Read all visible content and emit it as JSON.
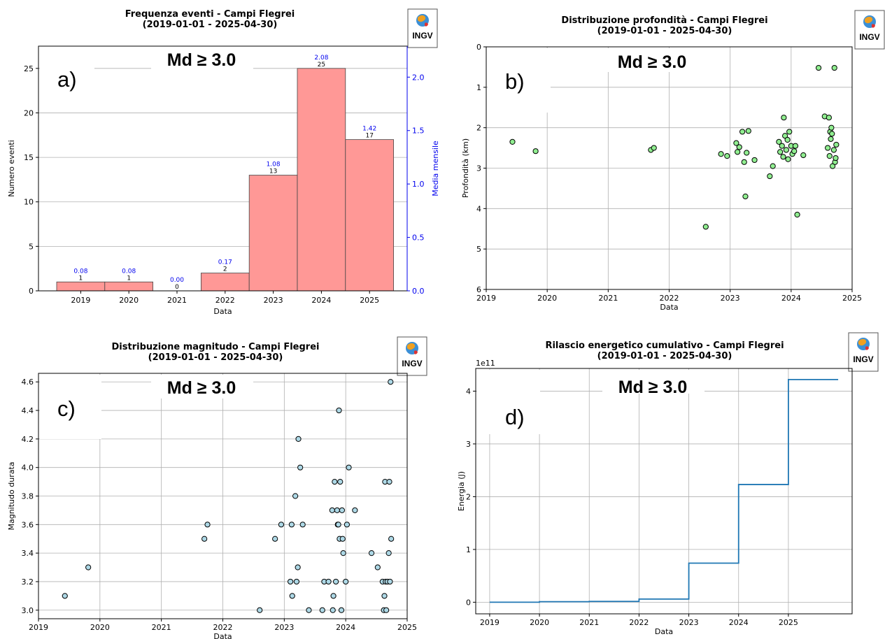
{
  "logo": {
    "text": "INGV"
  },
  "chart_data": [
    {
      "type": "bar",
      "panel_label": "a)",
      "md_label": "Md ≥ 3.0",
      "title": "Frequenza eventi - Campi Flegrei",
      "subtitle": "(2019-01-01 - 2025-04-30)",
      "xlabel": "Data",
      "ylabel": "Numero eventi",
      "y2label": "Media mensile",
      "categories": [
        "2019",
        "2020",
        "2021",
        "2022",
        "2023",
        "2024",
        "2025"
      ],
      "values": [
        1,
        1,
        0,
        2,
        13,
        25,
        17
      ],
      "secondary_values": [
        0.08,
        0.08,
        0.0,
        0.17,
        1.08,
        2.08,
        1.42
      ],
      "secondary_labels": [
        "0.08",
        "0.08",
        "0.00",
        "0.17",
        "1.08",
        "2.08",
        "1.42"
      ],
      "ylim": [
        0,
        27.5
      ],
      "y2lim": [
        0,
        2.29
      ],
      "yticks": [
        0,
        5,
        10,
        15,
        20,
        25
      ],
      "y2ticks": [
        "0.0",
        "0.5",
        "1.0",
        "1.5",
        "2.0"
      ],
      "bar_color": "#ff9896",
      "secondary_color": "#0000ee",
      "grid": "y"
    },
    {
      "type": "scatter",
      "panel_label": "b)",
      "md_label": "Md ≥ 3.0",
      "title": "Distribuzione profondità - Campi Flegrei",
      "subtitle": "(2019-01-01 - 2025-04-30)",
      "xlabel": "Data",
      "ylabel": "Profondità (km)",
      "xlim": [
        2019.0,
        2025.0
      ],
      "ylim": [
        0,
        6
      ],
      "y_inverted": true,
      "xticks": [
        "2019",
        "2020",
        "2021",
        "2022",
        "2023",
        "2024",
        "2025"
      ],
      "yticks": [
        "0",
        "1",
        "2",
        "3",
        "4",
        "5",
        "6"
      ],
      "marker_color": "#90ee90",
      "grid": "both",
      "points": [
        [
          2019.43,
          2.35
        ],
        [
          2019.81,
          2.58
        ],
        [
          2021.7,
          2.55
        ],
        [
          2021.75,
          2.5
        ],
        [
          2022.6,
          4.45
        ],
        [
          2022.85,
          2.65
        ],
        [
          2022.95,
          2.7
        ],
        [
          2023.1,
          2.38
        ],
        [
          2023.12,
          2.6
        ],
        [
          2023.15,
          2.48
        ],
        [
          2023.2,
          2.1
        ],
        [
          2023.23,
          2.85
        ],
        [
          2023.25,
          3.7
        ],
        [
          2023.27,
          2.62
        ],
        [
          2023.3,
          2.08
        ],
        [
          2023.4,
          2.8
        ],
        [
          2023.65,
          3.2
        ],
        [
          2023.7,
          2.95
        ],
        [
          2023.8,
          2.35
        ],
        [
          2023.82,
          2.6
        ],
        [
          2023.85,
          2.45
        ],
        [
          2023.87,
          2.72
        ],
        [
          2023.88,
          1.75
        ],
        [
          2023.9,
          2.2
        ],
        [
          2023.92,
          2.55
        ],
        [
          2023.94,
          2.3
        ],
        [
          2023.95,
          2.78
        ],
        [
          2023.97,
          2.1
        ],
        [
          2024.0,
          2.45
        ],
        [
          2024.02,
          2.65
        ],
        [
          2024.05,
          2.58
        ],
        [
          2024.07,
          2.45
        ],
        [
          2024.1,
          4.15
        ],
        [
          2024.2,
          2.68
        ],
        [
          2024.45,
          0.52
        ],
        [
          2024.55,
          1.72
        ],
        [
          2024.6,
          2.5
        ],
        [
          2024.62,
          1.75
        ],
        [
          2024.63,
          2.7
        ],
        [
          2024.64,
          2.1
        ],
        [
          2024.65,
          2.28
        ],
        [
          2024.66,
          2.0
        ],
        [
          2024.67,
          2.15
        ],
        [
          2024.68,
          2.95
        ],
        [
          2024.7,
          2.55
        ],
        [
          2024.71,
          0.52
        ],
        [
          2024.72,
          2.85
        ],
        [
          2024.73,
          2.75
        ],
        [
          2024.74,
          2.42
        ]
      ]
    },
    {
      "type": "scatter",
      "panel_label": "c)",
      "md_label": "Md ≥ 3.0",
      "title": "Distribuzione magnitudo - Campi Flegrei",
      "subtitle": "(2019-01-01 - 2025-04-30)",
      "xlabel": "Data",
      "ylabel": "Magnitudo durata",
      "xlim": [
        2019.0,
        2025.0
      ],
      "ylim": [
        2.94,
        4.66
      ],
      "xticks": [
        "2019",
        "2020",
        "2021",
        "2022",
        "2023",
        "2024",
        "2025"
      ],
      "yticks": [
        "3.0",
        "3.2",
        "3.4",
        "3.6",
        "3.8",
        "4.0",
        "4.2",
        "4.4",
        "4.6"
      ],
      "marker_color": "#add8e6",
      "grid": "both",
      "points": [
        [
          2019.43,
          3.1
        ],
        [
          2019.81,
          3.3
        ],
        [
          2021.7,
          3.5
        ],
        [
          2021.75,
          3.6
        ],
        [
          2022.6,
          3.0
        ],
        [
          2022.85,
          3.5
        ],
        [
          2022.95,
          3.6
        ],
        [
          2023.1,
          3.2
        ],
        [
          2023.12,
          3.6
        ],
        [
          2023.13,
          3.1
        ],
        [
          2023.18,
          3.8
        ],
        [
          2023.2,
          3.2
        ],
        [
          2023.22,
          3.3
        ],
        [
          2023.23,
          4.2
        ],
        [
          2023.26,
          4.0
        ],
        [
          2023.3,
          3.6
        ],
        [
          2023.4,
          3.0
        ],
        [
          2023.62,
          3.0
        ],
        [
          2023.65,
          3.2
        ],
        [
          2023.72,
          3.2
        ],
        [
          2023.78,
          3.7
        ],
        [
          2023.79,
          3.0
        ],
        [
          2023.8,
          3.1
        ],
        [
          2023.82,
          3.9
        ],
        [
          2023.84,
          3.2
        ],
        [
          2023.86,
          3.7
        ],
        [
          2023.87,
          3.6
        ],
        [
          2023.88,
          3.6
        ],
        [
          2023.89,
          4.4
        ],
        [
          2023.9,
          3.5
        ],
        [
          2023.91,
          3.9
        ],
        [
          2023.93,
          3.0
        ],
        [
          2023.94,
          3.7
        ],
        [
          2023.95,
          3.5
        ],
        [
          2023.96,
          3.4
        ],
        [
          2024.0,
          3.2
        ],
        [
          2024.02,
          3.6
        ],
        [
          2024.05,
          4.0
        ],
        [
          2024.15,
          3.7
        ],
        [
          2024.42,
          3.4
        ],
        [
          2024.52,
          3.3
        ],
        [
          2024.6,
          3.2
        ],
        [
          2024.62,
          3.0
        ],
        [
          2024.63,
          3.1
        ],
        [
          2024.64,
          3.9
        ],
        [
          2024.65,
          3.2
        ],
        [
          2024.66,
          3.0
        ],
        [
          2024.68,
          3.2
        ],
        [
          2024.7,
          3.4
        ],
        [
          2024.71,
          3.9
        ],
        [
          2024.72,
          3.2
        ],
        [
          2024.73,
          4.6
        ],
        [
          2024.74,
          3.5
        ]
      ]
    },
    {
      "type": "line",
      "panel_label": "d)",
      "md_label": "Md ≥ 3.0",
      "title": "Rilascio energetico cumulativo - Campi Flegrei",
      "subtitle": "(2019-01-01 - 2025-04-30)",
      "xlabel": "Data",
      "ylabel": "Energia (J)",
      "offset_label": "1e11",
      "xlim": [
        2018.72,
        2026.28
      ],
      "ylim": [
        -0.22,
        4.43
      ],
      "xticks": [
        "2019",
        "2020",
        "2021",
        "2022",
        "2023",
        "2024",
        "2025"
      ],
      "yticks": [
        "0",
        "1",
        "2",
        "3",
        "4"
      ],
      "line_color": "#1f77b4",
      "grid": "both",
      "step": true,
      "x": [
        2019,
        2020,
        2021,
        2022,
        2023,
        2024,
        2025,
        2026
      ],
      "values": [
        0.0,
        0.01,
        0.015,
        0.06,
        0.74,
        2.23,
        4.22,
        4.22
      ]
    }
  ]
}
